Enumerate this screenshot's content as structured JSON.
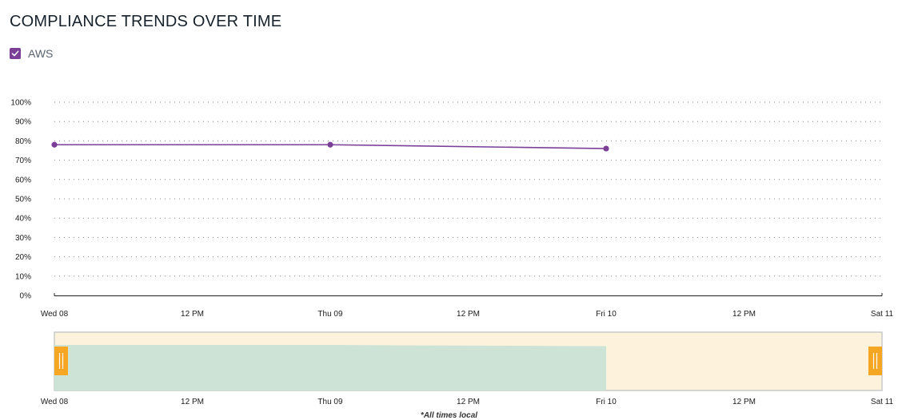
{
  "title": "COMPLIANCE TRENDS OVER TIME",
  "footnote": "*All times local",
  "colors": {
    "series": "#7b3f98",
    "navigator_bg": "#fdf3dc",
    "navigator_fill": "#cce3d6",
    "navigator_handle": "#f5a623"
  },
  "chart_data": {
    "type": "line",
    "title": "COMPLIANCE TRENDS OVER TIME",
    "xlabel": "",
    "ylabel": "",
    "x_ticks": [
      "Wed 08",
      "12 PM",
      "Thu 09",
      "12 PM",
      "Fri 10",
      "12 PM",
      "Sat 11"
    ],
    "x_range_hours": [
      0,
      72
    ],
    "ylim": [
      0,
      100
    ],
    "y_ticks": [
      "0%",
      "10%",
      "20%",
      "30%",
      "40%",
      "50%",
      "60%",
      "70%",
      "80%",
      "90%",
      "100%"
    ],
    "grid": true,
    "legend": "top-left",
    "series": [
      {
        "name": "AWS",
        "color": "#7b3f98",
        "x": [
          "Wed 08",
          "Thu 09",
          "Fri 10"
        ],
        "x_hours": [
          0,
          24,
          48
        ],
        "values": [
          78,
          78,
          76
        ]
      }
    ],
    "navigator": {
      "x_ticks": [
        "Wed 08",
        "12 PM",
        "Thu 09",
        "12 PM",
        "Fri 10",
        "12 PM",
        "Sat 11"
      ],
      "selected_range_hours": [
        0,
        72
      ]
    }
  }
}
